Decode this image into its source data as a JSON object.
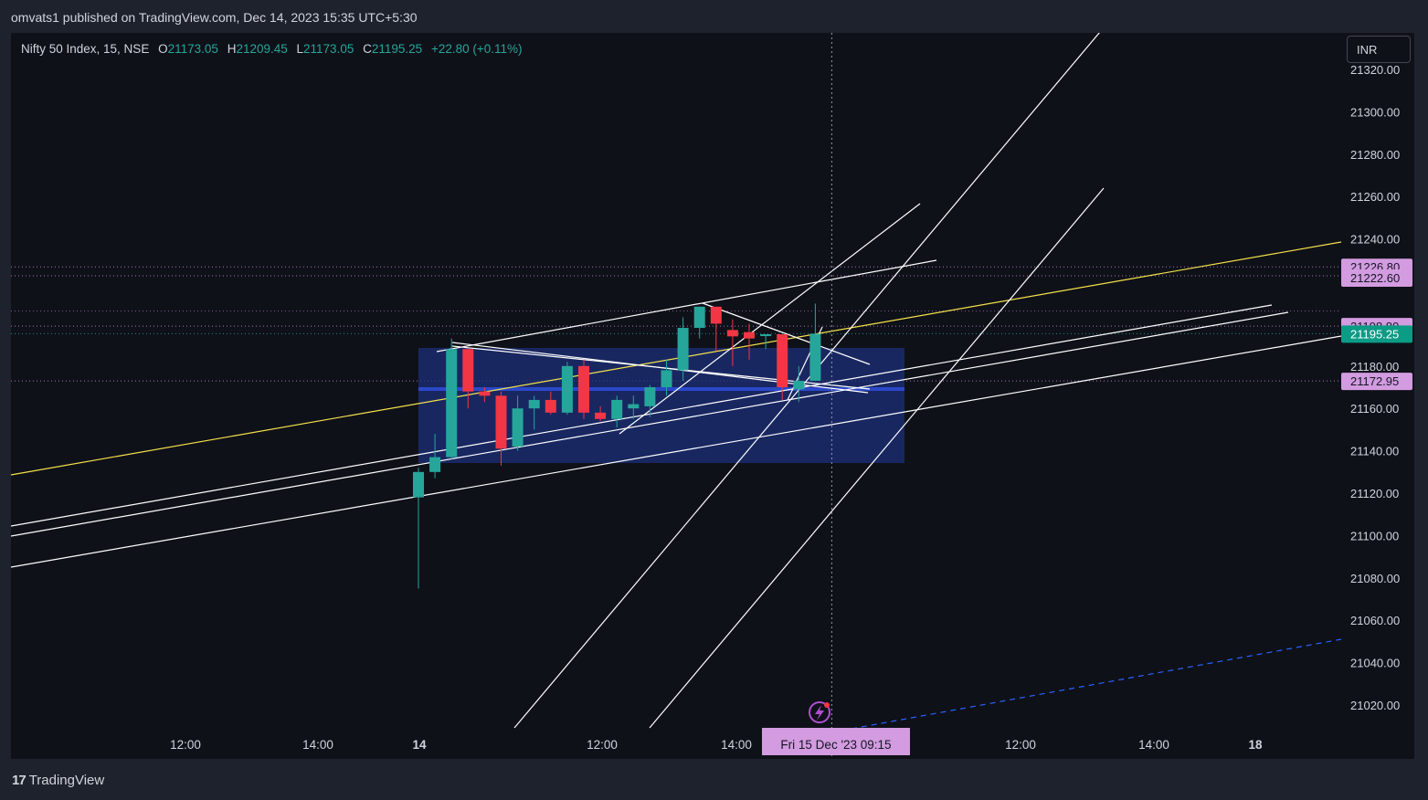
{
  "header": {
    "published_text": "omvats1 published on TradingView.com, Dec 14, 2023 15:35 UTC+5:30"
  },
  "legend": {
    "symbol": "Nifty 50 Index, 15, NSE",
    "o_label": "O",
    "o_value": "21173.05",
    "h_label": "H",
    "h_value": "21209.45",
    "l_label": "L",
    "l_value": "21173.05",
    "c_label": "C",
    "c_value": "21195.25",
    "change": "+22.80 (+0.11%)"
  },
  "currency_button": "INR",
  "footer": {
    "brand": "TradingView",
    "logo_mark": "17"
  },
  "crosshair_time_label": "Fri 15 Dec '23   09:15",
  "colors": {
    "up": "#26a69a",
    "down": "#f23645",
    "background": "#0f1119",
    "yellow_line": "#f5e34a",
    "rectangle_fill": "#1e2f7a",
    "price_label_bg": "#d39be0",
    "current_price_bg": "#0b9c85",
    "dashed_line": "#2962ff"
  },
  "icons": {
    "alert": "lightning-icon"
  },
  "chart_data": {
    "type": "candlestick",
    "title": "Nifty 50 Index, 15, NSE",
    "ylim": [
      21008,
      21338
    ],
    "y_ticks": [
      "21320.00",
      "21300.00",
      "21280.00",
      "21260.00",
      "21240.00",
      "21220.00",
      "21200.00",
      "21180.00",
      "21160.00",
      "21140.00",
      "21120.00",
      "21100.00",
      "21080.00",
      "21060.00",
      "21040.00",
      "21020.00"
    ],
    "x_ticks": [
      "12:00",
      "14:00",
      "14",
      "12:00",
      "14:00",
      "12:00",
      "14:00",
      "18"
    ],
    "price_labels": [
      {
        "text": "21226.80",
        "value": 21226.8,
        "kind": "marker"
      },
      {
        "text": "21222.60",
        "value": 21222.6,
        "kind": "marker"
      },
      {
        "text": "21198.80",
        "value": 21198.8,
        "kind": "marker"
      },
      {
        "text": "21195.25",
        "value": 21195.25,
        "kind": "current"
      },
      {
        "text": "21172.95",
        "value": 21172.95,
        "kind": "marker"
      }
    ],
    "candles": [
      {
        "o": 21118,
        "h": 21132,
        "l": 21075,
        "c": 21130
      },
      {
        "o": 21130,
        "h": 21148,
        "l": 21127,
        "c": 21137
      },
      {
        "o": 21137,
        "h": 21193,
        "l": 21136,
        "c": 21188
      },
      {
        "o": 21188,
        "h": 21188,
        "l": 21160,
        "c": 21168
      },
      {
        "o": 21168,
        "h": 21170,
        "l": 21163,
        "c": 21166
      },
      {
        "o": 21166,
        "h": 21168,
        "l": 21133,
        "c": 21141
      },
      {
        "o": 21142,
        "h": 21166,
        "l": 21140,
        "c": 21160
      },
      {
        "o": 21160,
        "h": 21166,
        "l": 21150,
        "c": 21164
      },
      {
        "o": 21164,
        "h": 21168,
        "l": 21157,
        "c": 21158
      },
      {
        "o": 21158,
        "h": 21182,
        "l": 21157,
        "c": 21180
      },
      {
        "o": 21180,
        "h": 21183,
        "l": 21155,
        "c": 21158
      },
      {
        "o": 21158,
        "h": 21161,
        "l": 21154,
        "c": 21155
      },
      {
        "o": 21155,
        "h": 21166,
        "l": 21151,
        "c": 21164
      },
      {
        "o": 21160,
        "h": 21166,
        "l": 21155,
        "c": 21162
      },
      {
        "o": 21161,
        "h": 21171,
        "l": 21156,
        "c": 21170
      },
      {
        "o": 21170,
        "h": 21183,
        "l": 21166,
        "c": 21178
      },
      {
        "o": 21178,
        "h": 21203,
        "l": 21173,
        "c": 21198
      },
      {
        "o": 21198,
        "h": 21208,
        "l": 21193,
        "c": 21208
      },
      {
        "o": 21208,
        "h": 21208,
        "l": 21187,
        "c": 21200
      },
      {
        "o": 21197,
        "h": 21202,
        "l": 21180,
        "c": 21194
      },
      {
        "o": 21196,
        "h": 21200,
        "l": 21183,
        "c": 21193
      },
      {
        "o": 21195,
        "h": 21195,
        "l": 21188,
        "c": 21195
      },
      {
        "o": 21195,
        "h": 21195,
        "l": 21164,
        "c": 21170
      },
      {
        "o": 21169,
        "h": 21180,
        "l": 21163,
        "c": 21173
      },
      {
        "o": 21173.05,
        "h": 21209.45,
        "l": 21173.05,
        "c": 21195.25
      }
    ]
  }
}
